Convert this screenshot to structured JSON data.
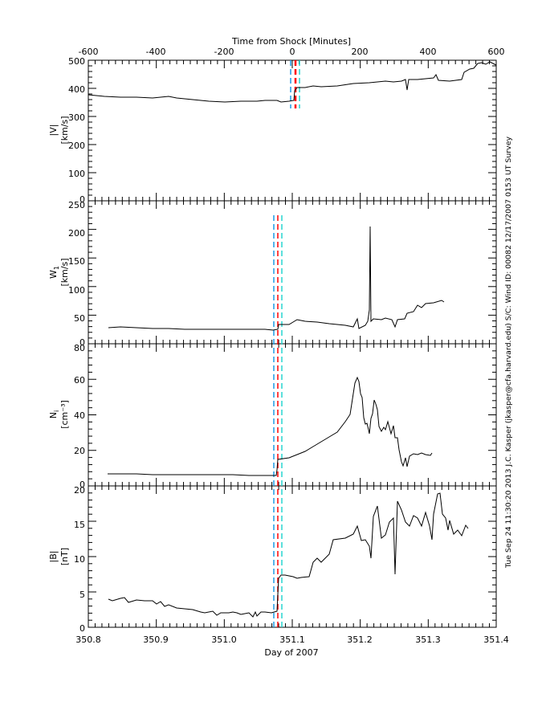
{
  "figure": {
    "top_axis_title": "Time from Shock [Minutes]",
    "top_axis_ticks": [
      "-600",
      "-400",
      "-200",
      "0",
      "200",
      "400",
      "600"
    ],
    "bottom_axis_title": "Day of 2007",
    "bottom_axis_ticks": [
      "350.8",
      "350.9",
      "351.0",
      "351.1",
      "351.2",
      "351.3",
      "351.4"
    ],
    "side_annotation": "Tue Sep 24 11:30:20 2013   J.C. Kasper (jkasper@cfa.harvard.edu)   S/C: Wind ID: 00082 12/17/2007   0153 UT Survey",
    "colors": {
      "line": "#000000",
      "shock": "#ff0000",
      "upstream_boundary": "#1e9be6",
      "downstream_boundary": "#26d6d0"
    }
  },
  "chart_data": [
    {
      "type": "line",
      "title": "Time from Shock [Minutes]",
      "panel": "speed",
      "ylabel": "|V| [km/s]",
      "ylabel_line1": "|V|",
      "ylabel_line2": "[km/s]",
      "xlabel": "Day of 2007",
      "xlim": [
        350.8,
        351.4
      ],
      "ylim": [
        0,
        500
      ],
      "yticks": [
        "0",
        "100",
        "200",
        "300",
        "400",
        "500"
      ],
      "top_xlim_minutes": [
        -600,
        600
      ],
      "shock_time_day": 351.086,
      "x": [
        350.8,
        350.85,
        350.9,
        350.95,
        351.0,
        351.05,
        351.08,
        351.086,
        351.1,
        351.15,
        351.2,
        351.25,
        351.26,
        351.3,
        351.33,
        351.35,
        351.37,
        351.4
      ],
      "values": [
        365,
        360,
        362,
        352,
        348,
        352,
        350,
        395,
        405,
        420,
        423,
        427,
        390,
        435,
        428,
        470,
        490,
        480
      ],
      "grid": false
    },
    {
      "type": "line",
      "panel": "thermal_speed",
      "ylabel": "W1 [km/s]",
      "ylabel_line1": "W",
      "ylabel_sub": "1",
      "ylabel_line2": "[km/s]",
      "xlim": [
        350.8,
        351.4
      ],
      "ylim": [
        0,
        250
      ],
      "yticks": [
        "0",
        "50",
        "100",
        "150",
        "200",
        "250"
      ],
      "x": [
        350.83,
        350.9,
        350.95,
        351.0,
        351.05,
        351.08,
        351.086,
        351.1,
        351.15,
        351.19,
        351.21,
        351.215,
        351.22,
        351.25,
        351.27,
        351.3,
        351.33
      ],
      "values": [
        30,
        28,
        27,
        26,
        27,
        25,
        30,
        40,
        35,
        32,
        35,
        208,
        42,
        38,
        48,
        65,
        75
      ],
      "grid": false
    },
    {
      "type": "line",
      "panel": "density",
      "ylabel": "Ni [cm^-3]",
      "ylabel_line1": "N",
      "ylabel_sub": "i",
      "ylabel_line2": "[cm⁻³]",
      "xlim": [
        350.8,
        351.4
      ],
      "ylim": [
        0,
        80
      ],
      "yticks": [
        "0",
        "20",
        "40",
        "60",
        "80"
      ],
      "x": [
        350.83,
        350.9,
        350.95,
        351.0,
        351.05,
        351.08,
        351.086,
        351.1,
        351.15,
        351.18,
        351.2,
        351.22,
        351.24,
        351.25,
        351.27,
        351.3,
        351.33
      ],
      "values": [
        7,
        7,
        7,
        6,
        6,
        7,
        15,
        20,
        28,
        40,
        58,
        35,
        52,
        35,
        25,
        15,
        18
      ],
      "grid": false
    },
    {
      "type": "line",
      "panel": "magnetic_field",
      "ylabel": "|B| [nT]",
      "ylabel_line1": "|B|",
      "ylabel_line2": "[nT]",
      "xlim": [
        350.8,
        351.4
      ],
      "ylim": [
        0,
        20
      ],
      "yticks": [
        "0",
        "5",
        "10",
        "15",
        "20"
      ],
      "x": [
        350.83,
        350.9,
        350.95,
        351.0,
        351.05,
        351.08,
        351.086,
        351.1,
        351.13,
        351.16,
        351.2,
        351.23,
        351.25,
        351.27,
        351.28,
        351.3,
        351.33
      ],
      "values": [
        4,
        4,
        3,
        2.5,
        3,
        3.5,
        7.5,
        7.5,
        12,
        14.5,
        17,
        12,
        16.5,
        14,
        20,
        14,
        14
      ],
      "grid": false
    }
  ]
}
